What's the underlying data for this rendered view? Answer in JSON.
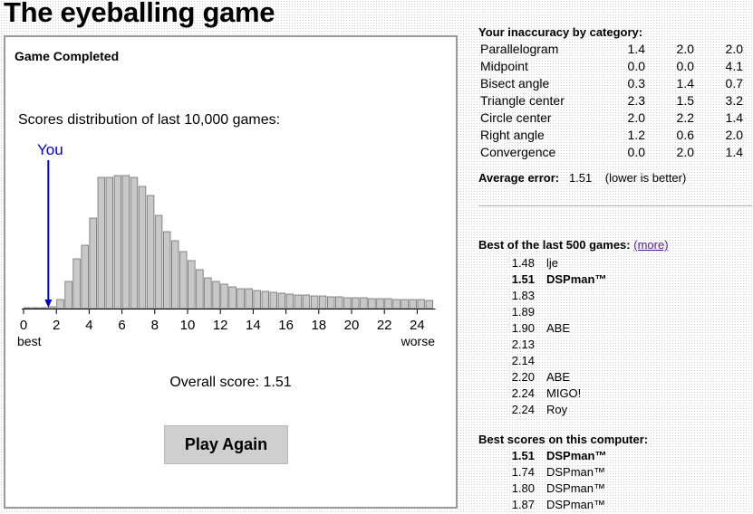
{
  "title": "The eyeballing game",
  "panel": {
    "heading": "Game Completed",
    "caption": "Scores distribution of last 10,000 games:",
    "you_label": "You",
    "best_label": "best",
    "worse_label": "worse",
    "overall_score": "Overall score: 1.51",
    "play_again": "Play Again"
  },
  "chart_data": {
    "type": "bar",
    "title": "Scores distribution of last 10,000 games:",
    "x_ticks": [
      0,
      2,
      4,
      6,
      8,
      10,
      12,
      14,
      16,
      18,
      20,
      22,
      24
    ],
    "xlim": [
      0,
      25
    ],
    "bin_width": 0.5,
    "you_marker_x": 1.51,
    "marker_color": "#0000cc",
    "bar_color": "#c8c8c8",
    "values": [
      1,
      1,
      1,
      2,
      10,
      30,
      55,
      70,
      100,
      145,
      145,
      147,
      147,
      145,
      135,
      125,
      103,
      85,
      75,
      63,
      53,
      43,
      34,
      30,
      27,
      24,
      22,
      22,
      20,
      19,
      18,
      17,
      16,
      15,
      15,
      14,
      14,
      13,
      13,
      12,
      12,
      12,
      11,
      11,
      11,
      10,
      10,
      10,
      10,
      9
    ]
  },
  "categories": {
    "title": "Your inaccuracy by category:",
    "rows": [
      {
        "name": "Parallelogram",
        "v1": "1.4",
        "v2": "2.0",
        "v3": "2.0"
      },
      {
        "name": "Midpoint",
        "v1": "0.0",
        "v2": "0.0",
        "v3": "4.1"
      },
      {
        "name": "Bisect angle",
        "v1": "0.3",
        "v2": "1.4",
        "v3": "0.7"
      },
      {
        "name": "Triangle center",
        "v1": "2.3",
        "v2": "1.5",
        "v3": "3.2"
      },
      {
        "name": "Circle center",
        "v1": "2.0",
        "v2": "2.2",
        "v3": "1.4"
      },
      {
        "name": "Right angle",
        "v1": "1.2",
        "v2": "0.6",
        "v3": "2.0"
      },
      {
        "name": "Convergence",
        "v1": "0.0",
        "v2": "2.0",
        "v3": "1.4"
      }
    ],
    "avg_label": "Average error:",
    "avg_value": "1.51",
    "avg_note": "(lower is better)"
  },
  "best500": {
    "title": "Best of the last 500 games:",
    "more": "(more)",
    "rows": [
      {
        "score": "1.48",
        "name": "lje",
        "bold": false
      },
      {
        "score": "1.51",
        "name": "DSPman™",
        "bold": true
      },
      {
        "score": "1.83",
        "name": "",
        "bold": false
      },
      {
        "score": "1.89",
        "name": "",
        "bold": false
      },
      {
        "score": "1.90",
        "name": "ABE",
        "bold": false
      },
      {
        "score": "2.13",
        "name": "",
        "bold": false
      },
      {
        "score": "2.14",
        "name": "",
        "bold": false
      },
      {
        "score": "2.20",
        "name": "ABE",
        "bold": false
      },
      {
        "score": "2.24",
        "name": "MIGO!",
        "bold": false
      },
      {
        "score": "2.24",
        "name": "Roy",
        "bold": false
      }
    ]
  },
  "best_computer": {
    "title": "Best scores on this computer:",
    "rows": [
      {
        "score": "1.51",
        "name": "DSPman™",
        "bold": true
      },
      {
        "score": "1.74",
        "name": "DSPman™",
        "bold": false
      },
      {
        "score": "1.80",
        "name": "DSPman™",
        "bold": false
      },
      {
        "score": "1.87",
        "name": "DSPman™",
        "bold": false
      }
    ]
  }
}
